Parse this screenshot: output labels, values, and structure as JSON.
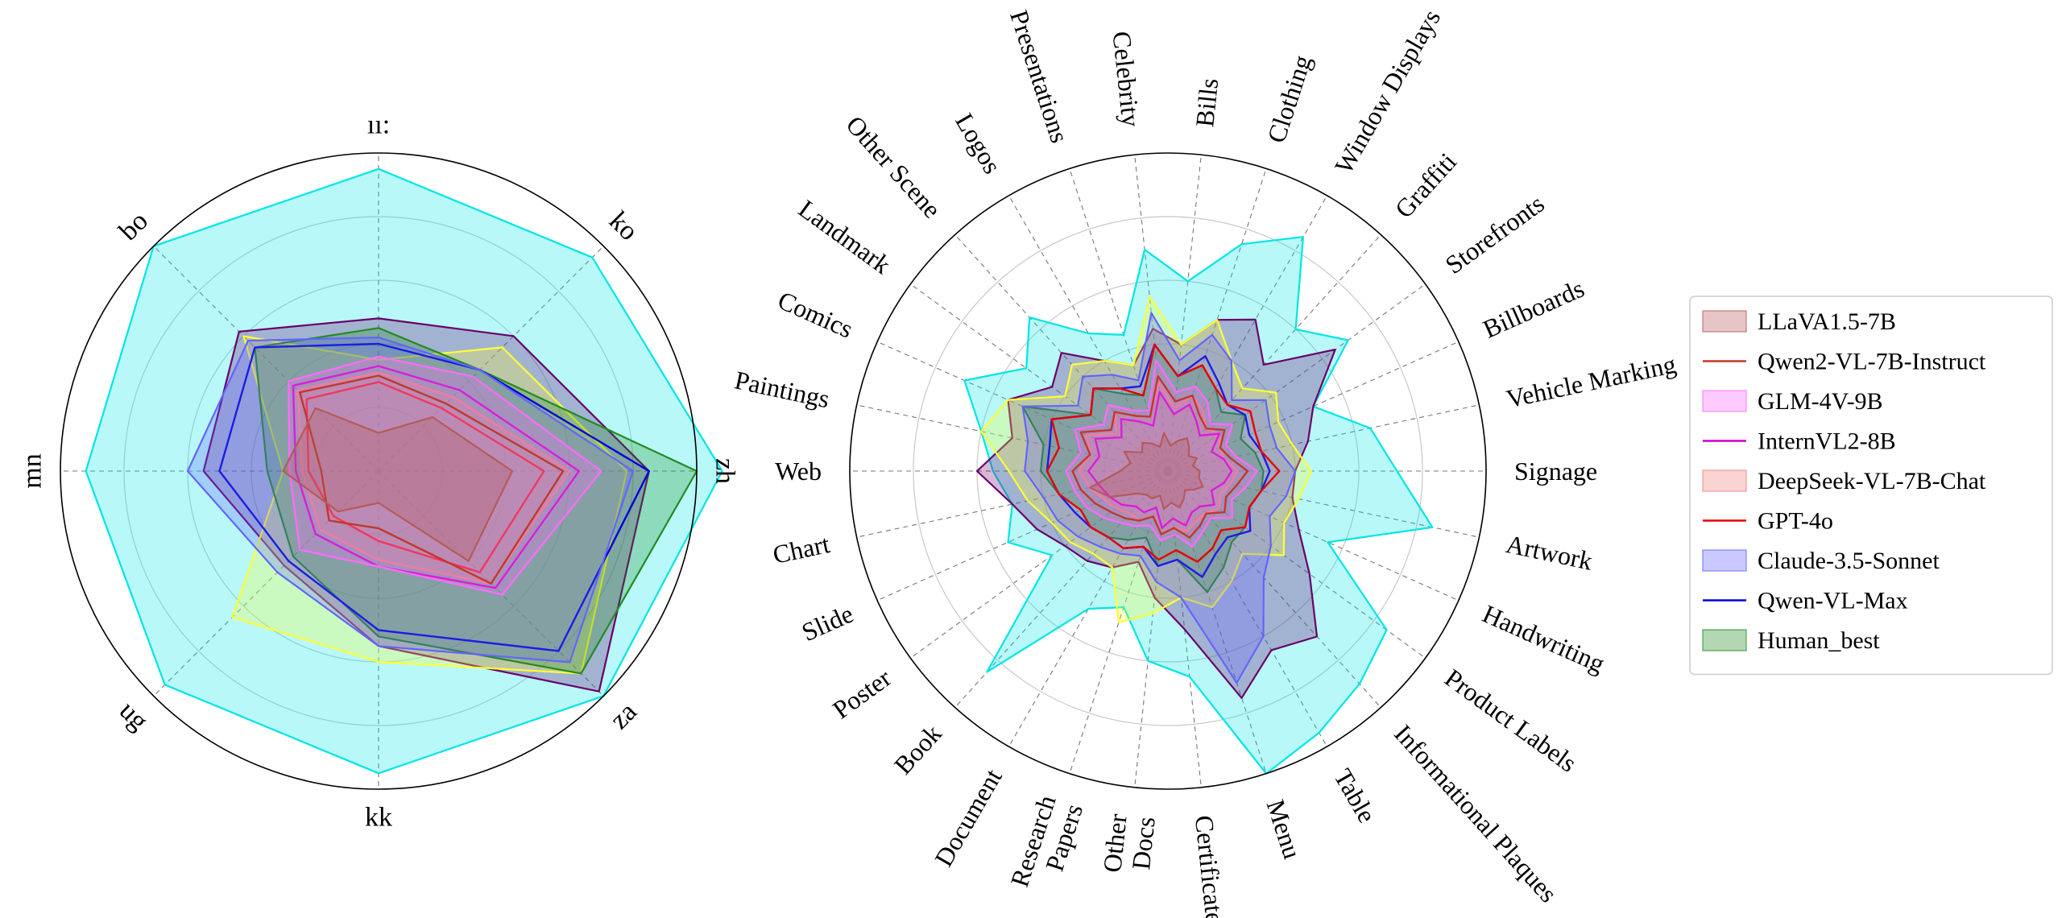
{
  "chart_data": [
    {
      "type": "radar",
      "panel": "left",
      "categories": [
        "zh",
        "ko",
        "ıı:",
        "bo",
        "mn",
        "ug",
        "kk",
        "za"
      ],
      "rlim": [
        0,
        1
      ],
      "grid": true,
      "series": [
        {
          "name": "LLaVA1.5-7B",
          "values": [
            0.42,
            0.24,
            0.12,
            0.28,
            0.3,
            0.18,
            0.1,
            0.4
          ],
          "color": "#b55a5a",
          "style": "fill"
        },
        {
          "name": "Qwen2-VL-7B-Instruct",
          "values": [
            0.58,
            0.3,
            0.3,
            0.35,
            0.18,
            0.22,
            0.18,
            0.5
          ],
          "color": "#c0392b",
          "style": "line"
        },
        {
          "name": "GLM-4V-9B",
          "values": [
            0.7,
            0.42,
            0.36,
            0.4,
            0.28,
            0.35,
            0.3,
            0.55
          ],
          "color": "#ff6bff",
          "style": "fill"
        },
        {
          "name": "InternVL2-8B",
          "values": [
            0.63,
            0.36,
            0.33,
            0.38,
            0.26,
            0.28,
            0.3,
            0.52
          ],
          "color": "#cc00cc",
          "style": "line"
        },
        {
          "name": "DeepSeek-VL-7B-Chat",
          "values": [
            0.6,
            0.33,
            0.31,
            0.36,
            0.24,
            0.26,
            0.28,
            0.5
          ],
          "color": "#f08080",
          "style": "fill"
        },
        {
          "name": "GPT-4o",
          "values": [
            0.52,
            0.28,
            0.28,
            0.32,
            0.22,
            0.2,
            0.22,
            0.45
          ],
          "color": "#e60000",
          "style": "line"
        },
        {
          "name": "Claude-3.5-Sonnet",
          "values": [
            0.8,
            0.45,
            0.42,
            0.58,
            0.6,
            0.45,
            0.55,
            0.85
          ],
          "color": "#6464ff",
          "style": "fill"
        },
        {
          "name": "Qwen-VL-Max",
          "values": [
            0.85,
            0.45,
            0.4,
            0.55,
            0.5,
            0.4,
            0.5,
            0.8
          ],
          "color": "#0000dd",
          "style": "line"
        },
        {
          "name": "Human_best",
          "values": [
            1.0,
            0.45,
            0.45,
            0.55,
            0.35,
            0.38,
            0.52,
            0.9
          ],
          "color": "#228b22",
          "style": "fill"
        },
        {
          "name": "",
          "values": [
            0.78,
            0.55,
            0.35,
            0.6,
            0.3,
            0.65,
            0.6,
            0.9
          ],
          "color": "#ffff33",
          "style": "fill"
        },
        {
          "name": "",
          "values": [
            0.85,
            0.6,
            0.48,
            0.62,
            0.55,
            0.42,
            0.55,
            0.98
          ],
          "color": "#6a006a",
          "style": "fill"
        },
        {
          "name": "",
          "values": [
            1.08,
            0.95,
            0.95,
            1.0,
            0.92,
            0.95,
            0.95,
            1.0
          ],
          "color": "#00e5e5",
          "style": "fill"
        }
      ]
    },
    {
      "type": "radar",
      "panel": "right",
      "categories": [
        "Signage",
        "Vehicle Marking",
        "Billboards",
        "Storefronts",
        "Graffiti",
        "Window Displays",
        "Clothing",
        "Bills",
        "Celebrity",
        "Presentations",
        "Logos",
        "Other Scene",
        "Landmark",
        "Comics",
        "Paintings",
        "Web",
        "Chart",
        "Slide",
        "Poster",
        "Book",
        "Document",
        "Research\nPapers",
        "Other\nDocs",
        "Certificate",
        "Menu",
        "Table",
        "Informational Plaques",
        "Product Labels",
        "Handwriting",
        "Artwork"
      ],
      "rlim": [
        0,
        1
      ],
      "grid": true,
      "series": [
        {
          "name": "LLaVA1.5-7B",
          "values": [
            0.1,
            0.08,
            0.1,
            0.08,
            0.1,
            0.12,
            0.1,
            0.08,
            0.12,
            0.08,
            0.1,
            0.12,
            0.1,
            0.15,
            0.12,
            0.15,
            0.25,
            0.2,
            0.12,
            0.1,
            0.1,
            0.08,
            0.12,
            0.1,
            0.12,
            0.1,
            0.08,
            0.1,
            0.12,
            0.1
          ],
          "color": "#b55a5a",
          "style": "fill"
        },
        {
          "name": "Qwen2-VL-7B-Instruct",
          "values": [
            0.25,
            0.2,
            0.18,
            0.22,
            0.18,
            0.2,
            0.25,
            0.22,
            0.3,
            0.18,
            0.2,
            0.25,
            0.22,
            0.3,
            0.25,
            0.3,
            0.28,
            0.25,
            0.22,
            0.2,
            0.18,
            0.15,
            0.2,
            0.18,
            0.22,
            0.2,
            0.18,
            0.22,
            0.2,
            0.22
          ],
          "color": "#c0392b",
          "style": "line"
        },
        {
          "name": "GLM-4V-9B",
          "values": [
            0.28,
            0.22,
            0.2,
            0.25,
            0.2,
            0.25,
            0.28,
            0.25,
            0.35,
            0.2,
            0.22,
            0.28,
            0.25,
            0.32,
            0.28,
            0.32,
            0.3,
            0.28,
            0.25,
            0.22,
            0.2,
            0.18,
            0.22,
            0.2,
            0.25,
            0.22,
            0.2,
            0.25,
            0.22,
            0.25
          ],
          "color": "#ff6bff",
          "style": "fill"
        },
        {
          "name": "InternVL2-8B",
          "values": [
            0.2,
            0.18,
            0.15,
            0.2,
            0.15,
            0.18,
            0.22,
            0.18,
            0.25,
            0.15,
            0.18,
            0.22,
            0.18,
            0.25,
            0.22,
            0.25,
            0.22,
            0.2,
            0.18,
            0.15,
            0.15,
            0.12,
            0.18,
            0.15,
            0.18,
            0.15,
            0.15,
            0.18,
            0.15,
            0.18
          ],
          "color": "#cc00cc",
          "style": "line"
        },
        {
          "name": "DeepSeek-VL-7B-Chat",
          "values": [
            0.22,
            0.18,
            0.18,
            0.2,
            0.18,
            0.22,
            0.25,
            0.2,
            0.28,
            0.18,
            0.2,
            0.25,
            0.2,
            0.28,
            0.25,
            0.28,
            0.25,
            0.22,
            0.2,
            0.18,
            0.18,
            0.15,
            0.2,
            0.18,
            0.2,
            0.18,
            0.18,
            0.2,
            0.18,
            0.2
          ],
          "color": "#f08080",
          "style": "fill"
        },
        {
          "name": "GPT-4o",
          "values": [
            0.35,
            0.3,
            0.3,
            0.32,
            0.28,
            0.3,
            0.35,
            0.3,
            0.4,
            0.25,
            0.3,
            0.35,
            0.3,
            0.4,
            0.35,
            0.38,
            0.35,
            0.3,
            0.3,
            0.28,
            0.28,
            0.25,
            0.28,
            0.25,
            0.3,
            0.28,
            0.25,
            0.3,
            0.28,
            0.3
          ],
          "color": "#e60000",
          "style": "line"
        },
        {
          "name": "Claude-3.5-Sonnet",
          "values": [
            0.4,
            0.35,
            0.35,
            0.38,
            0.3,
            0.4,
            0.45,
            0.35,
            0.5,
            0.3,
            0.35,
            0.4,
            0.35,
            0.5,
            0.45,
            0.45,
            0.4,
            0.38,
            0.35,
            0.32,
            0.3,
            0.28,
            0.35,
            0.4,
            0.7,
            0.6,
            0.45,
            0.4,
            0.35,
            0.38
          ],
          "color": "#6464ff",
          "style": "fill"
        },
        {
          "name": "Qwen-VL-Max",
          "values": [
            0.32,
            0.3,
            0.28,
            0.3,
            0.28,
            0.32,
            0.38,
            0.3,
            0.4,
            0.28,
            0.3,
            0.35,
            0.3,
            0.4,
            0.38,
            0.38,
            0.35,
            0.32,
            0.3,
            0.28,
            0.28,
            0.25,
            0.3,
            0.28,
            0.35,
            0.3,
            0.28,
            0.32,
            0.28,
            0.3
          ],
          "color": "#0000dd",
          "style": "line"
        },
        {
          "name": "Human_best",
          "values": [
            0.3,
            0.28,
            0.25,
            0.3,
            0.25,
            0.3,
            0.35,
            0.3,
            0.4,
            0.25,
            0.28,
            0.35,
            0.3,
            0.5,
            0.4,
            0.4,
            0.35,
            0.3,
            0.3,
            0.28,
            0.25,
            0.22,
            0.3,
            0.28,
            0.4,
            0.35,
            0.3,
            0.3,
            0.28,
            0.3
          ],
          "color": "#228b22",
          "style": "fill"
        },
        {
          "name": "",
          "values": [
            0.45,
            0.4,
            0.38,
            0.42,
            0.35,
            0.4,
            0.5,
            0.4,
            0.55,
            0.35,
            0.4,
            0.45,
            0.4,
            0.55,
            0.6,
            0.5,
            0.45,
            0.4,
            0.38,
            0.35,
            0.35,
            0.5,
            0.45,
            0.4,
            0.45,
            0.4,
            0.35,
            0.45,
            0.4,
            0.42
          ],
          "color": "#ffff33",
          "style": "fill"
        },
        {
          "name": "",
          "values": [
            0.4,
            0.45,
            0.5,
            0.65,
            0.45,
            0.55,
            0.5,
            0.4,
            0.45,
            0.35,
            0.4,
            0.5,
            0.45,
            0.55,
            0.5,
            0.6,
            0.5,
            0.45,
            0.4,
            0.38,
            0.35,
            0.3,
            0.4,
            0.5,
            0.75,
            0.65,
            0.7,
            0.55,
            0.45,
            0.4
          ],
          "color": "#6a006a",
          "style": "fill"
        },
        {
          "name": "",
          "values": [
            0.72,
            0.65,
            0.5,
            0.7,
            0.6,
            0.85,
            0.75,
            0.6,
            0.7,
            0.45,
            0.5,
            0.65,
            0.55,
            0.7,
            0.6,
            0.55,
            0.5,
            0.55,
            0.45,
            0.85,
            0.5,
            0.45,
            0.6,
            0.65,
            1.0,
            0.95,
            0.9,
            0.85,
            0.55,
            0.85
          ],
          "color": "#00e5e5",
          "style": "fill"
        }
      ]
    }
  ],
  "legend": {
    "placement": "right",
    "entries": [
      {
        "label": "LLaVA1.5-7B",
        "style": "fill",
        "color": "#b55a5a"
      },
      {
        "label": "Qwen2-VL-7B-Instruct",
        "style": "line",
        "color": "#c0392b"
      },
      {
        "label": "GLM-4V-9B",
        "style": "fill",
        "color": "#ff6bff"
      },
      {
        "label": "InternVL2-8B",
        "style": "line",
        "color": "#cc00cc"
      },
      {
        "label": "DeepSeek-VL-7B-Chat",
        "style": "fill",
        "color": "#f08080"
      },
      {
        "label": "GPT-4o",
        "style": "line",
        "color": "#e60000"
      },
      {
        "label": "Claude-3.5-Sonnet",
        "style": "fill",
        "color": "#6464ff"
      },
      {
        "label": "Qwen-VL-Max",
        "style": "line",
        "color": "#0000dd"
      },
      {
        "label": "Human_best",
        "style": "fill",
        "color": "#228b22"
      }
    ]
  }
}
